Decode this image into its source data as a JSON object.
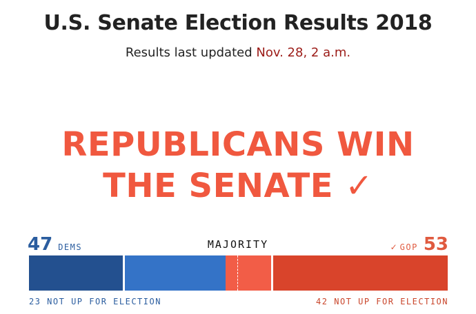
{
  "header": {
    "title": "U.S. Senate Election Results 2018",
    "updated_prefix": "Results last updated ",
    "updated_date": "Nov. 28, 2 a.m."
  },
  "headline": {
    "line1": "REPUBLICANS WIN",
    "line2": "THE SENATE",
    "check": "✓"
  },
  "tally": {
    "dems": {
      "seats": "47",
      "label": "DEMS",
      "not_up": "23 NOT UP FOR ELECTION",
      "color": "#2b5d9f"
    },
    "gop": {
      "seats": "53",
      "label": "GOP",
      "check": "✓",
      "not_up": "42 NOT UP FOR ELECTION",
      "color": "#e05a3f"
    },
    "majority_label": "MAJORITY"
  },
  "colors": {
    "dem_not_up": "#23508f",
    "dem_up": "#3473c7",
    "gop_up": "#f25d47",
    "gop_not_up": "#d9442b",
    "headline": "#f0583f",
    "date": "#9b1b17"
  }
}
